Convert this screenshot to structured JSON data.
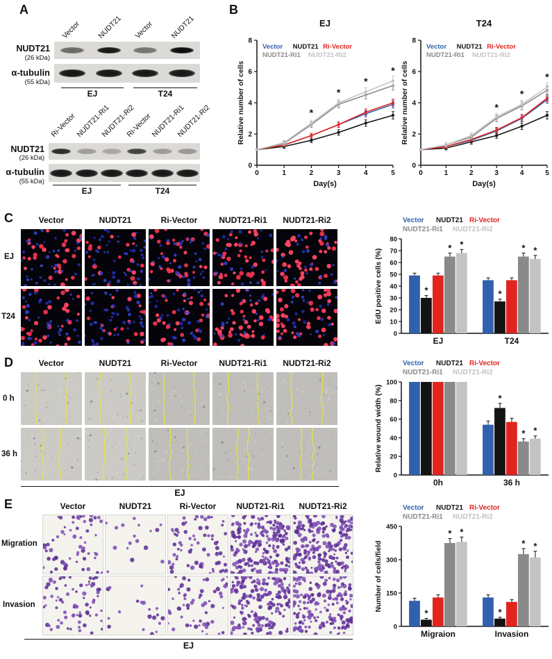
{
  "conditions": [
    "Vector",
    "NUDT21",
    "Ri-Vector",
    "NUDT21-Ri1",
    "NUDT21-Ri2"
  ],
  "legend": [
    {
      "name": "Vector",
      "color": "#3060ae"
    },
    {
      "name": "NUDT21",
      "color": "#141414"
    },
    {
      "name": "Ri-Vector",
      "color": "#e02420"
    },
    {
      "name": "NUDT21-Ri1",
      "color": "#8a8a8a"
    },
    {
      "name": "NUDT21-Ri2",
      "color": "#c3c3c3"
    }
  ],
  "panelA": {
    "label": "A",
    "blot_top": {
      "lanes": [
        "Vector",
        "NUDT21",
        "Vector",
        "NUDT21"
      ],
      "protein1": "NUDT21",
      "mw1": "(26 kDa)",
      "protein2": "α-tubulin",
      "mw2": "(55 kDa)",
      "groups": [
        "EJ",
        "T24"
      ],
      "bands_nudt21": [
        0.55,
        0.95,
        0.5,
        1.0
      ],
      "bands_tubulin": [
        0.95,
        0.95,
        0.95,
        0.95
      ]
    },
    "blot_bottom": {
      "lanes": [
        "Ri-Vector",
        "NUDT21-Ri1",
        "NUDT21-Ri2",
        "Ri-Vector",
        "NUDT21-Ri1",
        "NUDT21-Ri2"
      ],
      "protein1": "NUDT21",
      "mw1": "(26 kDa)",
      "protein2": "α-tubulin",
      "mw2": "(55 kDa)",
      "groups": [
        "EJ",
        "T24"
      ],
      "bands_nudt21": [
        0.85,
        0.3,
        0.25,
        0.75,
        0.3,
        0.32
      ],
      "bands_tubulin": [
        0.95,
        0.95,
        0.95,
        0.95,
        0.95,
        0.95
      ]
    }
  },
  "panelB": {
    "label": "B"
  },
  "panelC": {
    "label": "C",
    "row_labels": [
      "EJ",
      "T24"
    ]
  },
  "panelD": {
    "label": "D",
    "row_labels": [
      "0 h",
      "36 h"
    ],
    "footer": "EJ"
  },
  "panelE": {
    "label": "E",
    "row_labels": [
      "Migration",
      "Invasion"
    ],
    "footer": "EJ"
  },
  "chart_data": [
    {
      "id": "B_EJ",
      "type": "line",
      "title": "EJ",
      "xlabel": "Day(s)",
      "ylabel": "Relative number of cells",
      "xlim": [
        0,
        5
      ],
      "ylim": [
        0,
        8
      ],
      "xticks": [
        0,
        1,
        2,
        3,
        4,
        5
      ],
      "yticks": [
        0,
        2,
        4,
        6,
        8
      ],
      "x": [
        0,
        1,
        2,
        3,
        4,
        5
      ],
      "legend_position": "top-left-inside",
      "series": [
        {
          "name": "Vector",
          "color": "#3060ae",
          "err": 0.12,
          "values": [
            1,
            1.3,
            1.9,
            2.6,
            3.3,
            3.9
          ]
        },
        {
          "name": "NUDT21",
          "color": "#141414",
          "err": 0.12,
          "values": [
            1,
            1.2,
            1.6,
            2.1,
            2.7,
            3.2
          ]
        },
        {
          "name": "Ri-Vector",
          "color": "#e02420",
          "err": 0.12,
          "values": [
            1,
            1.3,
            1.9,
            2.6,
            3.4,
            4.0
          ]
        },
        {
          "name": "NUDT21-Ri1",
          "color": "#8a8a8a",
          "err": 0.15,
          "values": [
            1,
            1.4,
            2.6,
            3.9,
            4.5,
            5.1
          ]
        },
        {
          "name": "NUDT21-Ri2",
          "color": "#c3c3c3",
          "err": 0.15,
          "values": [
            1,
            1.45,
            2.7,
            4.0,
            4.7,
            5.4
          ]
        }
      ],
      "annotations": [
        {
          "x": 2,
          "y": 3.15,
          "text": "*"
        },
        {
          "x": 3,
          "y": 4.45,
          "text": "*"
        },
        {
          "x": 4,
          "y": 5.15,
          "text": "*"
        },
        {
          "x": 5,
          "y": 5.85,
          "text": "*"
        }
      ]
    },
    {
      "id": "B_T24",
      "type": "line",
      "title": "T24",
      "xlabel": "Day(s)",
      "ylabel": "Relative number of cells",
      "xlim": [
        0,
        5
      ],
      "ylim": [
        0,
        8
      ],
      "xticks": [
        0,
        1,
        2,
        3,
        4,
        5
      ],
      "yticks": [
        0,
        2,
        4,
        6,
        8
      ],
      "x": [
        0,
        1,
        2,
        3,
        4,
        5
      ],
      "legend_position": "top-left-inside",
      "series": [
        {
          "name": "Vector",
          "color": "#3060ae",
          "err": 0.12,
          "values": [
            1,
            1.2,
            1.6,
            2.2,
            3.0,
            4.2
          ]
        },
        {
          "name": "NUDT21",
          "color": "#141414",
          "err": 0.12,
          "values": [
            1,
            1.1,
            1.5,
            1.9,
            2.5,
            3.2
          ]
        },
        {
          "name": "Ri-Vector",
          "color": "#e02420",
          "err": 0.12,
          "values": [
            1,
            1.2,
            1.65,
            2.25,
            3.05,
            4.3
          ]
        },
        {
          "name": "NUDT21-Ri1",
          "color": "#8a8a8a",
          "err": 0.15,
          "values": [
            1,
            1.3,
            1.8,
            3.0,
            3.8,
            4.8
          ]
        },
        {
          "name": "NUDT21-Ri2",
          "color": "#c3c3c3",
          "err": 0.15,
          "values": [
            1,
            1.3,
            1.9,
            3.1,
            3.9,
            5.0
          ]
        }
      ],
      "annotations": [
        {
          "x": 3,
          "y": 3.5,
          "text": "*"
        },
        {
          "x": 4,
          "y": 4.35,
          "text": "*"
        },
        {
          "x": 5,
          "y": 5.45,
          "text": "*"
        }
      ]
    },
    {
      "id": "C_bar",
      "type": "bar",
      "ylabel": "EdU positive cells (%)",
      "ylim": [
        0,
        80
      ],
      "yticks": [
        0,
        10,
        20,
        30,
        40,
        50,
        60,
        70,
        80
      ],
      "categories": [
        "EJ",
        "T24"
      ],
      "legend_position": "top",
      "series": [
        {
          "name": "Vector",
          "color": "#3060ae",
          "values": [
            49,
            45
          ],
          "errors": [
            2,
            2
          ]
        },
        {
          "name": "NUDT21",
          "color": "#141414",
          "values": [
            30,
            27
          ],
          "errors": [
            2,
            2
          ]
        },
        {
          "name": "Ri-Vector",
          "color": "#e02420",
          "values": [
            49,
            45
          ],
          "errors": [
            2,
            2
          ]
        },
        {
          "name": "NUDT21-Ri1",
          "color": "#8a8a8a",
          "values": [
            65,
            65
          ],
          "errors": [
            3,
            3
          ]
        },
        {
          "name": "NUDT21-Ri2",
          "color": "#c3c3c3",
          "values": [
            68,
            63
          ],
          "errors": [
            3,
            3
          ]
        }
      ],
      "asterisks": [
        {
          "cat": 0,
          "series": 1,
          "text": "*"
        },
        {
          "cat": 0,
          "series": 3,
          "text": "*"
        },
        {
          "cat": 0,
          "series": 4,
          "text": "*"
        },
        {
          "cat": 1,
          "series": 1,
          "text": "*"
        },
        {
          "cat": 1,
          "series": 3,
          "text": "*"
        },
        {
          "cat": 1,
          "series": 4,
          "text": "*"
        }
      ]
    },
    {
      "id": "D_bar",
      "type": "bar",
      "ylabel": "Relative wound width (%)",
      "ylim": [
        0,
        100
      ],
      "yticks": [
        0,
        20,
        40,
        60,
        80,
        100
      ],
      "categories": [
        "0h",
        "36 h"
      ],
      "legend_position": "top",
      "series": [
        {
          "name": "Vector",
          "color": "#3060ae",
          "values": [
            100,
            54
          ],
          "errors": [
            0,
            4
          ]
        },
        {
          "name": "NUDT21",
          "color": "#141414",
          "values": [
            100,
            72
          ],
          "errors": [
            0,
            5
          ]
        },
        {
          "name": "Ri-Vector",
          "color": "#e02420",
          "values": [
            100,
            57
          ],
          "errors": [
            0,
            4
          ]
        },
        {
          "name": "NUDT21-Ri1",
          "color": "#8a8a8a",
          "values": [
            100,
            36
          ],
          "errors": [
            0,
            3
          ]
        },
        {
          "name": "NUDT21-Ri2",
          "color": "#c3c3c3",
          "values": [
            100,
            39
          ],
          "errors": [
            0,
            3
          ]
        }
      ],
      "asterisks": [
        {
          "cat": 1,
          "series": 1,
          "text": "*"
        },
        {
          "cat": 1,
          "series": 3,
          "text": "*"
        },
        {
          "cat": 1,
          "series": 4,
          "text": "*"
        }
      ]
    },
    {
      "id": "E_bar",
      "type": "bar",
      "ylabel": "Number of cells/field",
      "ylim": [
        0,
        450
      ],
      "yticks": [
        0,
        150,
        300,
        450
      ],
      "categories": [
        "Migraion",
        "Invasion"
      ],
      "legend_position": "top",
      "series": [
        {
          "name": "Vector",
          "color": "#3060ae",
          "values": [
            115,
            130
          ],
          "errors": [
            12,
            12
          ]
        },
        {
          "name": "NUDT21",
          "color": "#141414",
          "values": [
            30,
            35
          ],
          "errors": [
            6,
            6
          ]
        },
        {
          "name": "Ri-Vector",
          "color": "#e02420",
          "values": [
            130,
            110
          ],
          "errors": [
            12,
            10
          ]
        },
        {
          "name": "NUDT21-Ri1",
          "color": "#8a8a8a",
          "values": [
            375,
            325
          ],
          "errors": [
            20,
            25
          ]
        },
        {
          "name": "NUDT21-Ri2",
          "color": "#c3c3c3",
          "values": [
            380,
            310
          ],
          "errors": [
            22,
            28
          ]
        }
      ],
      "asterisks": [
        {
          "cat": 0,
          "series": 1,
          "text": "*"
        },
        {
          "cat": 0,
          "series": 3,
          "text": "*"
        },
        {
          "cat": 0,
          "series": 4,
          "text": "*"
        },
        {
          "cat": 1,
          "series": 1,
          "text": "*"
        },
        {
          "cat": 1,
          "series": 3,
          "text": "*"
        },
        {
          "cat": 1,
          "series": 4,
          "text": "*"
        }
      ]
    }
  ]
}
